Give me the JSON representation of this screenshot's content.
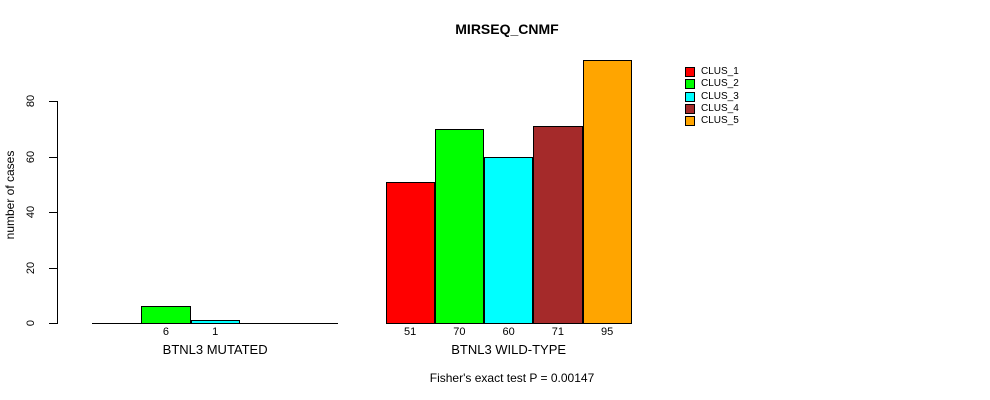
{
  "title": "MIRSEQ_CNMF",
  "chart_data": {
    "type": "bar",
    "title": "MIRSEQ_CNMF",
    "xlabel": "",
    "ylabel": "number of cases",
    "ylim": [
      0,
      96
    ],
    "yticks": [
      0,
      20,
      40,
      60,
      80
    ],
    "grid": false,
    "legend_position": "top-right",
    "categories": [
      "BTNL3 MUTATED",
      "BTNL3 WILD-TYPE"
    ],
    "series": [
      {
        "name": "CLUS_1",
        "color": "#FF0000",
        "values": [
          0,
          51
        ]
      },
      {
        "name": "CLUS_2",
        "color": "#00FF00",
        "values": [
          6,
          70
        ]
      },
      {
        "name": "CLUS_3",
        "color": "#00FFFF",
        "values": [
          1,
          60
        ]
      },
      {
        "name": "CLUS_4",
        "color": "#A52A2A",
        "values": [
          0,
          71
        ]
      },
      {
        "name": "CLUS_5",
        "color": "#FFA500",
        "values": [
          0,
          95
        ]
      }
    ],
    "bar_value_labels": [
      [
        "",
        "51"
      ],
      [
        "6",
        "70"
      ],
      [
        "1",
        "60"
      ],
      [
        "",
        "71"
      ],
      [
        "",
        "95"
      ]
    ],
    "annotation": "Fisher's exact test P = 0.00147",
    "axis_color": "#000000",
    "background_color": "#FFFFFF"
  }
}
